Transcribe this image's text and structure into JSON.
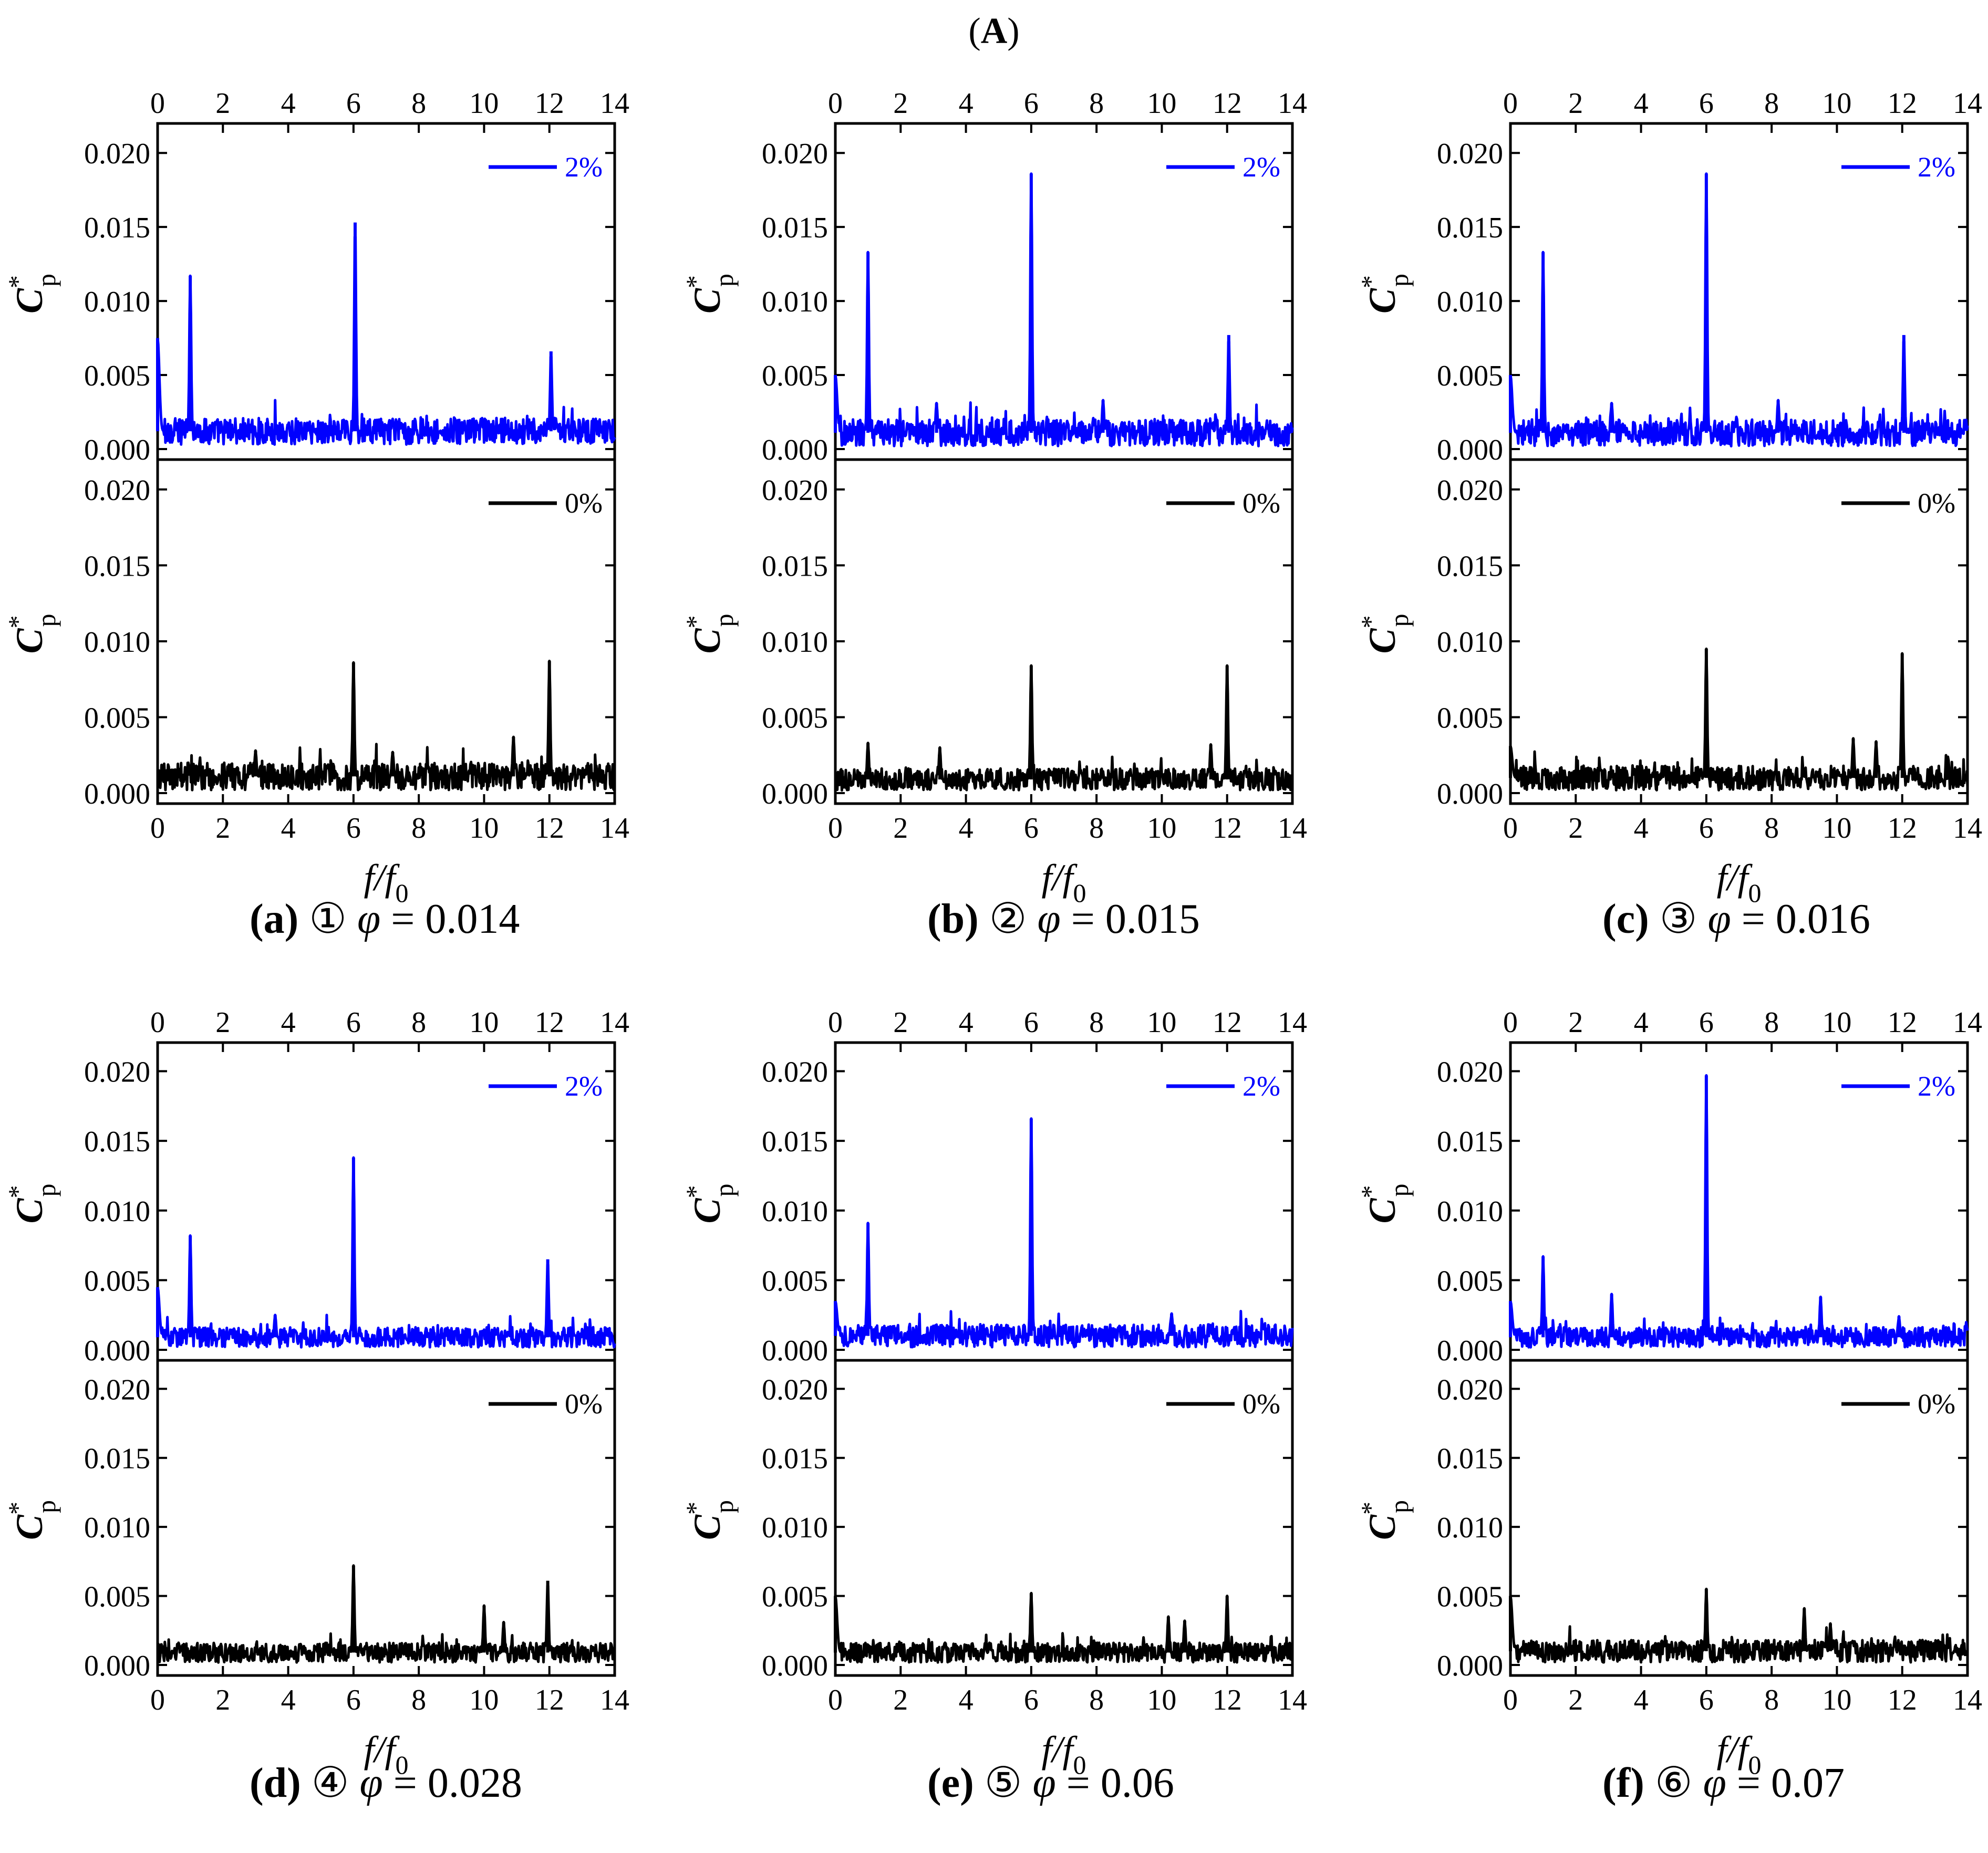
{
  "figure": {
    "title_open": "(",
    "title_letter": "A",
    "title_close": ")"
  },
  "common": {
    "xlabel_main": "f/f",
    "xlabel_sub": "0",
    "ylabel_main": "C",
    "ylabel_sup": "*",
    "ylabel_sub": "p",
    "x_ticks": [
      0,
      2,
      4,
      6,
      8,
      10,
      12,
      14
    ],
    "y_ticks": [
      "0.000",
      "0.005",
      "0.010",
      "0.015",
      "0.020"
    ],
    "colors": {
      "blue": "#0000ff",
      "black": "#000000"
    }
  },
  "chart_data": [
    {
      "id": "a",
      "type": "line",
      "caption": {
        "letter": "(a)",
        "circled": "①",
        "phi_symbol": "φ",
        "eq": " = 0.014"
      },
      "xlim": [
        0,
        14
      ],
      "ylim": [
        0,
        0.021
      ],
      "upper": {
        "legend": "2%",
        "color": "#0000ff",
        "noise_mean": 0.0012,
        "noise_amp": 0.001,
        "peaks": [
          [
            0,
            0.0075
          ],
          [
            1.0,
            0.0117
          ],
          [
            6.05,
            0.0153
          ],
          [
            12.05,
            0.0066
          ]
        ]
      },
      "lower": {
        "legend": "0%",
        "color": "#000000",
        "noise_mean": 0.0011,
        "noise_amp": 0.001,
        "peaks": [
          [
            6.0,
            0.0086
          ],
          [
            12.0,
            0.0087
          ],
          [
            10.9,
            0.0037
          ],
          [
            3.0,
            0.0028
          ],
          [
            7.2,
            0.0027
          ]
        ]
      }
    },
    {
      "id": "b",
      "type": "line",
      "caption": {
        "letter": "(b)",
        "circled": "②",
        "phi_symbol": "φ",
        "eq": " = 0.015"
      },
      "xlim": [
        0,
        14
      ],
      "ylim": [
        0,
        0.021
      ],
      "upper": {
        "legend": "2%",
        "color": "#0000ff",
        "noise_mean": 0.0011,
        "noise_amp": 0.001,
        "peaks": [
          [
            0,
            0.005
          ],
          [
            1.0,
            0.0133
          ],
          [
            6.0,
            0.0186
          ],
          [
            12.05,
            0.0077
          ],
          [
            8.2,
            0.0033
          ],
          [
            3.1,
            0.0031
          ]
        ]
      },
      "lower": {
        "legend": "0%",
        "color": "#000000",
        "noise_mean": 0.0009,
        "noise_amp": 0.0008,
        "peaks": [
          [
            6.0,
            0.0084
          ],
          [
            12.0,
            0.0084
          ],
          [
            1.0,
            0.0033
          ],
          [
            3.2,
            0.003
          ],
          [
            11.5,
            0.0032
          ]
        ]
      }
    },
    {
      "id": "c",
      "type": "line",
      "caption": {
        "letter": "(c)",
        "circled": "③",
        "phi_symbol": "φ",
        "eq": " = 0.016"
      },
      "xlim": [
        0,
        14
      ],
      "ylim": [
        0,
        0.021
      ],
      "upper": {
        "legend": "2%",
        "color": "#0000ff",
        "noise_mean": 0.0011,
        "noise_amp": 0.001,
        "peaks": [
          [
            0,
            0.005
          ],
          [
            1.0,
            0.0133
          ],
          [
            6.0,
            0.0186
          ],
          [
            12.05,
            0.0077
          ],
          [
            8.2,
            0.0033
          ],
          [
            3.1,
            0.0031
          ]
        ]
      },
      "lower": {
        "legend": "0%",
        "color": "#000000",
        "noise_mean": 0.001,
        "noise_amp": 0.0009,
        "peaks": [
          [
            0,
            0.0031
          ],
          [
            6.0,
            0.0095
          ],
          [
            12.0,
            0.0092
          ],
          [
            10.5,
            0.0036
          ],
          [
            11.2,
            0.0034
          ]
        ]
      }
    },
    {
      "id": "d",
      "type": "line",
      "caption": {
        "letter": "(d)",
        "circled": "④",
        "phi_symbol": "φ",
        "eq": " = 0.028"
      },
      "xlim": [
        0,
        14
      ],
      "ylim": [
        0,
        0.021
      ],
      "upper": {
        "legend": "2%",
        "color": "#0000ff",
        "noise_mean": 0.0009,
        "noise_amp": 0.0008,
        "peaks": [
          [
            0,
            0.0045
          ],
          [
            1.0,
            0.0082
          ],
          [
            6.0,
            0.0138
          ],
          [
            11.95,
            0.0065
          ],
          [
            3.6,
            0.0025
          ]
        ]
      },
      "lower": {
        "legend": "0%",
        "color": "#000000",
        "noise_mean": 0.0009,
        "noise_amp": 0.0008,
        "peaks": [
          [
            6.0,
            0.0072
          ],
          [
            10.0,
            0.0043
          ],
          [
            11.95,
            0.0061
          ],
          [
            10.6,
            0.0031
          ]
        ]
      }
    },
    {
      "id": "e",
      "type": "line",
      "caption": {
        "letter": "(e)",
        "circled": "⑤",
        "phi_symbol": "φ",
        "eq": " = 0.06"
      },
      "xlim": [
        0,
        14
      ],
      "ylim": [
        0,
        0.021
      ],
      "upper": {
        "legend": "2%",
        "color": "#0000ff",
        "noise_mean": 0.001,
        "noise_amp": 0.0009,
        "peaks": [
          [
            0,
            0.0035
          ],
          [
            1.0,
            0.0091
          ],
          [
            6.0,
            0.0166
          ],
          [
            10.3,
            0.0026
          ]
        ]
      },
      "lower": {
        "legend": "0%",
        "color": "#000000",
        "noise_mean": 0.0009,
        "noise_amp": 0.0008,
        "peaks": [
          [
            0,
            0.005
          ],
          [
            6.0,
            0.0052
          ],
          [
            12.0,
            0.005
          ],
          [
            10.2,
            0.0035
          ],
          [
            10.7,
            0.0032
          ]
        ]
      }
    },
    {
      "id": "f",
      "type": "line",
      "caption": {
        "letter": "(f)",
        "circled": "⑥",
        "phi_symbol": "φ",
        "eq": " = 0.07"
      },
      "xlim": [
        0,
        14
      ],
      "ylim": [
        0,
        0.021
      ],
      "upper": {
        "legend": "2%",
        "color": "#0000ff",
        "noise_mean": 0.0009,
        "noise_amp": 0.0008,
        "peaks": [
          [
            0,
            0.0035
          ],
          [
            1.0,
            0.0067
          ],
          [
            3.1,
            0.004
          ],
          [
            6.0,
            0.0197
          ],
          [
            9.5,
            0.0038
          ],
          [
            11.9,
            0.0024
          ]
        ]
      },
      "lower": {
        "legend": "0%",
        "color": "#000000",
        "noise_mean": 0.001,
        "noise_amp": 0.0009,
        "peaks": [
          [
            0,
            0.005
          ],
          [
            6.0,
            0.0055
          ],
          [
            9.0,
            0.0041
          ],
          [
            9.8,
            0.003
          ]
        ]
      }
    }
  ]
}
